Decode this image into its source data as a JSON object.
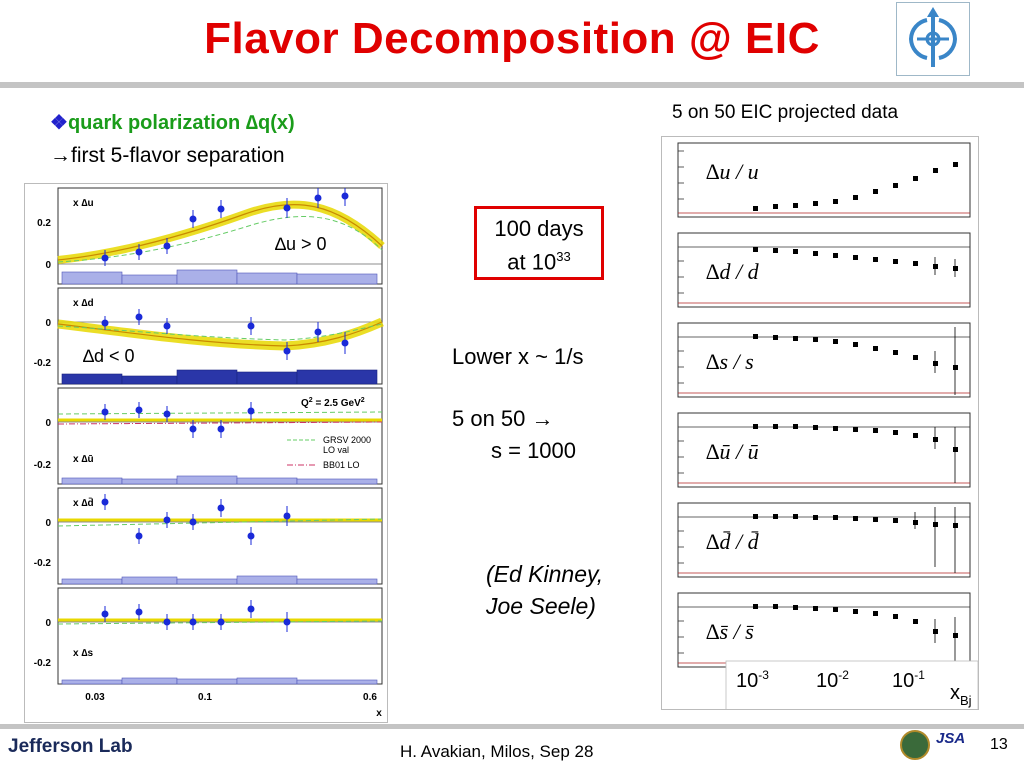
{
  "slide": {
    "title": "Flavor Decomposition @ EIC",
    "bullet1_marker": "❖",
    "bullet1": "quark polarization ∆q(x)",
    "bullet2": "→first 5-flavor separation",
    "days_line1": "100 days",
    "days_line2": "at 10",
    "days_exp": "33",
    "lower_x": "Lower x ~ 1/s",
    "five50_line1": "5 on 50 →",
    "five50_line2": "s = 1000",
    "credit_line1": "(Ed Kinney,",
    "credit_line2": "Joe Seele)",
    "footer": "H. Avakian, Milos,  Sep 28",
    "page_number": "13",
    "footer_logo": "Jefferson Lab",
    "jsa_logo": "JSA"
  },
  "left_figure": {
    "panels": [
      {
        "label": "x ∆u",
        "note": "∆u > 0",
        "ticks": [
          "0.2",
          "0"
        ]
      },
      {
        "label": "x ∆d",
        "note": "∆d < 0",
        "ticks": [
          "0",
          "-0.2"
        ]
      },
      {
        "label": "x ∆ū",
        "note": "",
        "ticks": [
          "0",
          "-0.2"
        ]
      },
      {
        "label": "x ∆d̄",
        "note": "",
        "ticks": [
          "0",
          "-0.2"
        ]
      },
      {
        "label": "x ∆s",
        "note": "",
        "ticks": [
          "0",
          "-0.2"
        ]
      }
    ],
    "q2_label": "Q",
    "q2_sup": "2",
    "q2_value": " = 2.5 GeV",
    "q2_unit_sup": "2",
    "legend": [
      {
        "label": "GRSV 2000",
        "color": "#66cc66"
      },
      {
        "label": "LO val",
        "color": ""
      },
      {
        "label": "BB01 LO",
        "color": "#cc3366"
      }
    ],
    "xticks": [
      "0.03",
      "0.1",
      "0.6"
    ],
    "xlabel": "x"
  },
  "right_figure": {
    "caption": "5 on 50 EIC projected data",
    "panels": [
      {
        "label": "∆u / u"
      },
      {
        "label": "∆d / d"
      },
      {
        "label": "∆s / s"
      },
      {
        "label": "∆ū / ū"
      },
      {
        "label": "∆d̄ / d̄"
      },
      {
        "label": "∆s̄ / s̄"
      }
    ],
    "xticks": [
      {
        "base": "10",
        "exp": "-3"
      },
      {
        "base": "10",
        "exp": "-2"
      },
      {
        "base": "10",
        "exp": "-1"
      }
    ],
    "xlabel": "x",
    "xlabel_sub": "Bj"
  },
  "colors": {
    "title": "#e00000",
    "bullet": "#1a9c1a",
    "band": "#e8d800",
    "points": "#1a2ad8",
    "hist": "#8890d8",
    "rule": "#c4c4c4"
  }
}
